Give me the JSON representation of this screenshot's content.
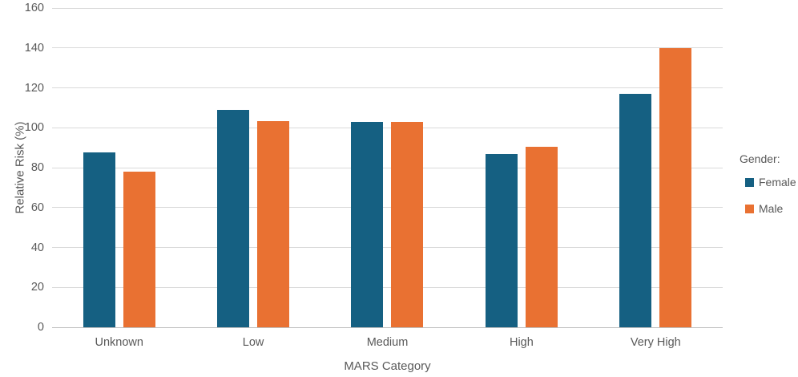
{
  "chart_data": {
    "type": "bar",
    "categories": [
      "Unknown",
      "Low",
      "Medium",
      "High",
      "Very High"
    ],
    "series": [
      {
        "name": "Female",
        "color": "#156082",
        "values": [
          87.5,
          109,
          103,
          87,
          117
        ]
      },
      {
        "name": "Male",
        "color": "#E97132",
        "values": [
          78,
          103.5,
          103,
          90.5,
          140
        ]
      }
    ],
    "xlabel": "MARS Category",
    "ylabel": "Relative Risk (%)",
    "ylim": [
      0,
      160
    ],
    "ytick_step": 20,
    "grid": true,
    "legend_position": "right",
    "legend_title": "Gender:"
  },
  "colors": {
    "gridline": "#D9D9D9",
    "axis_line": "#BFBFBF",
    "text": "#595959",
    "background": "#FFFFFF"
  }
}
